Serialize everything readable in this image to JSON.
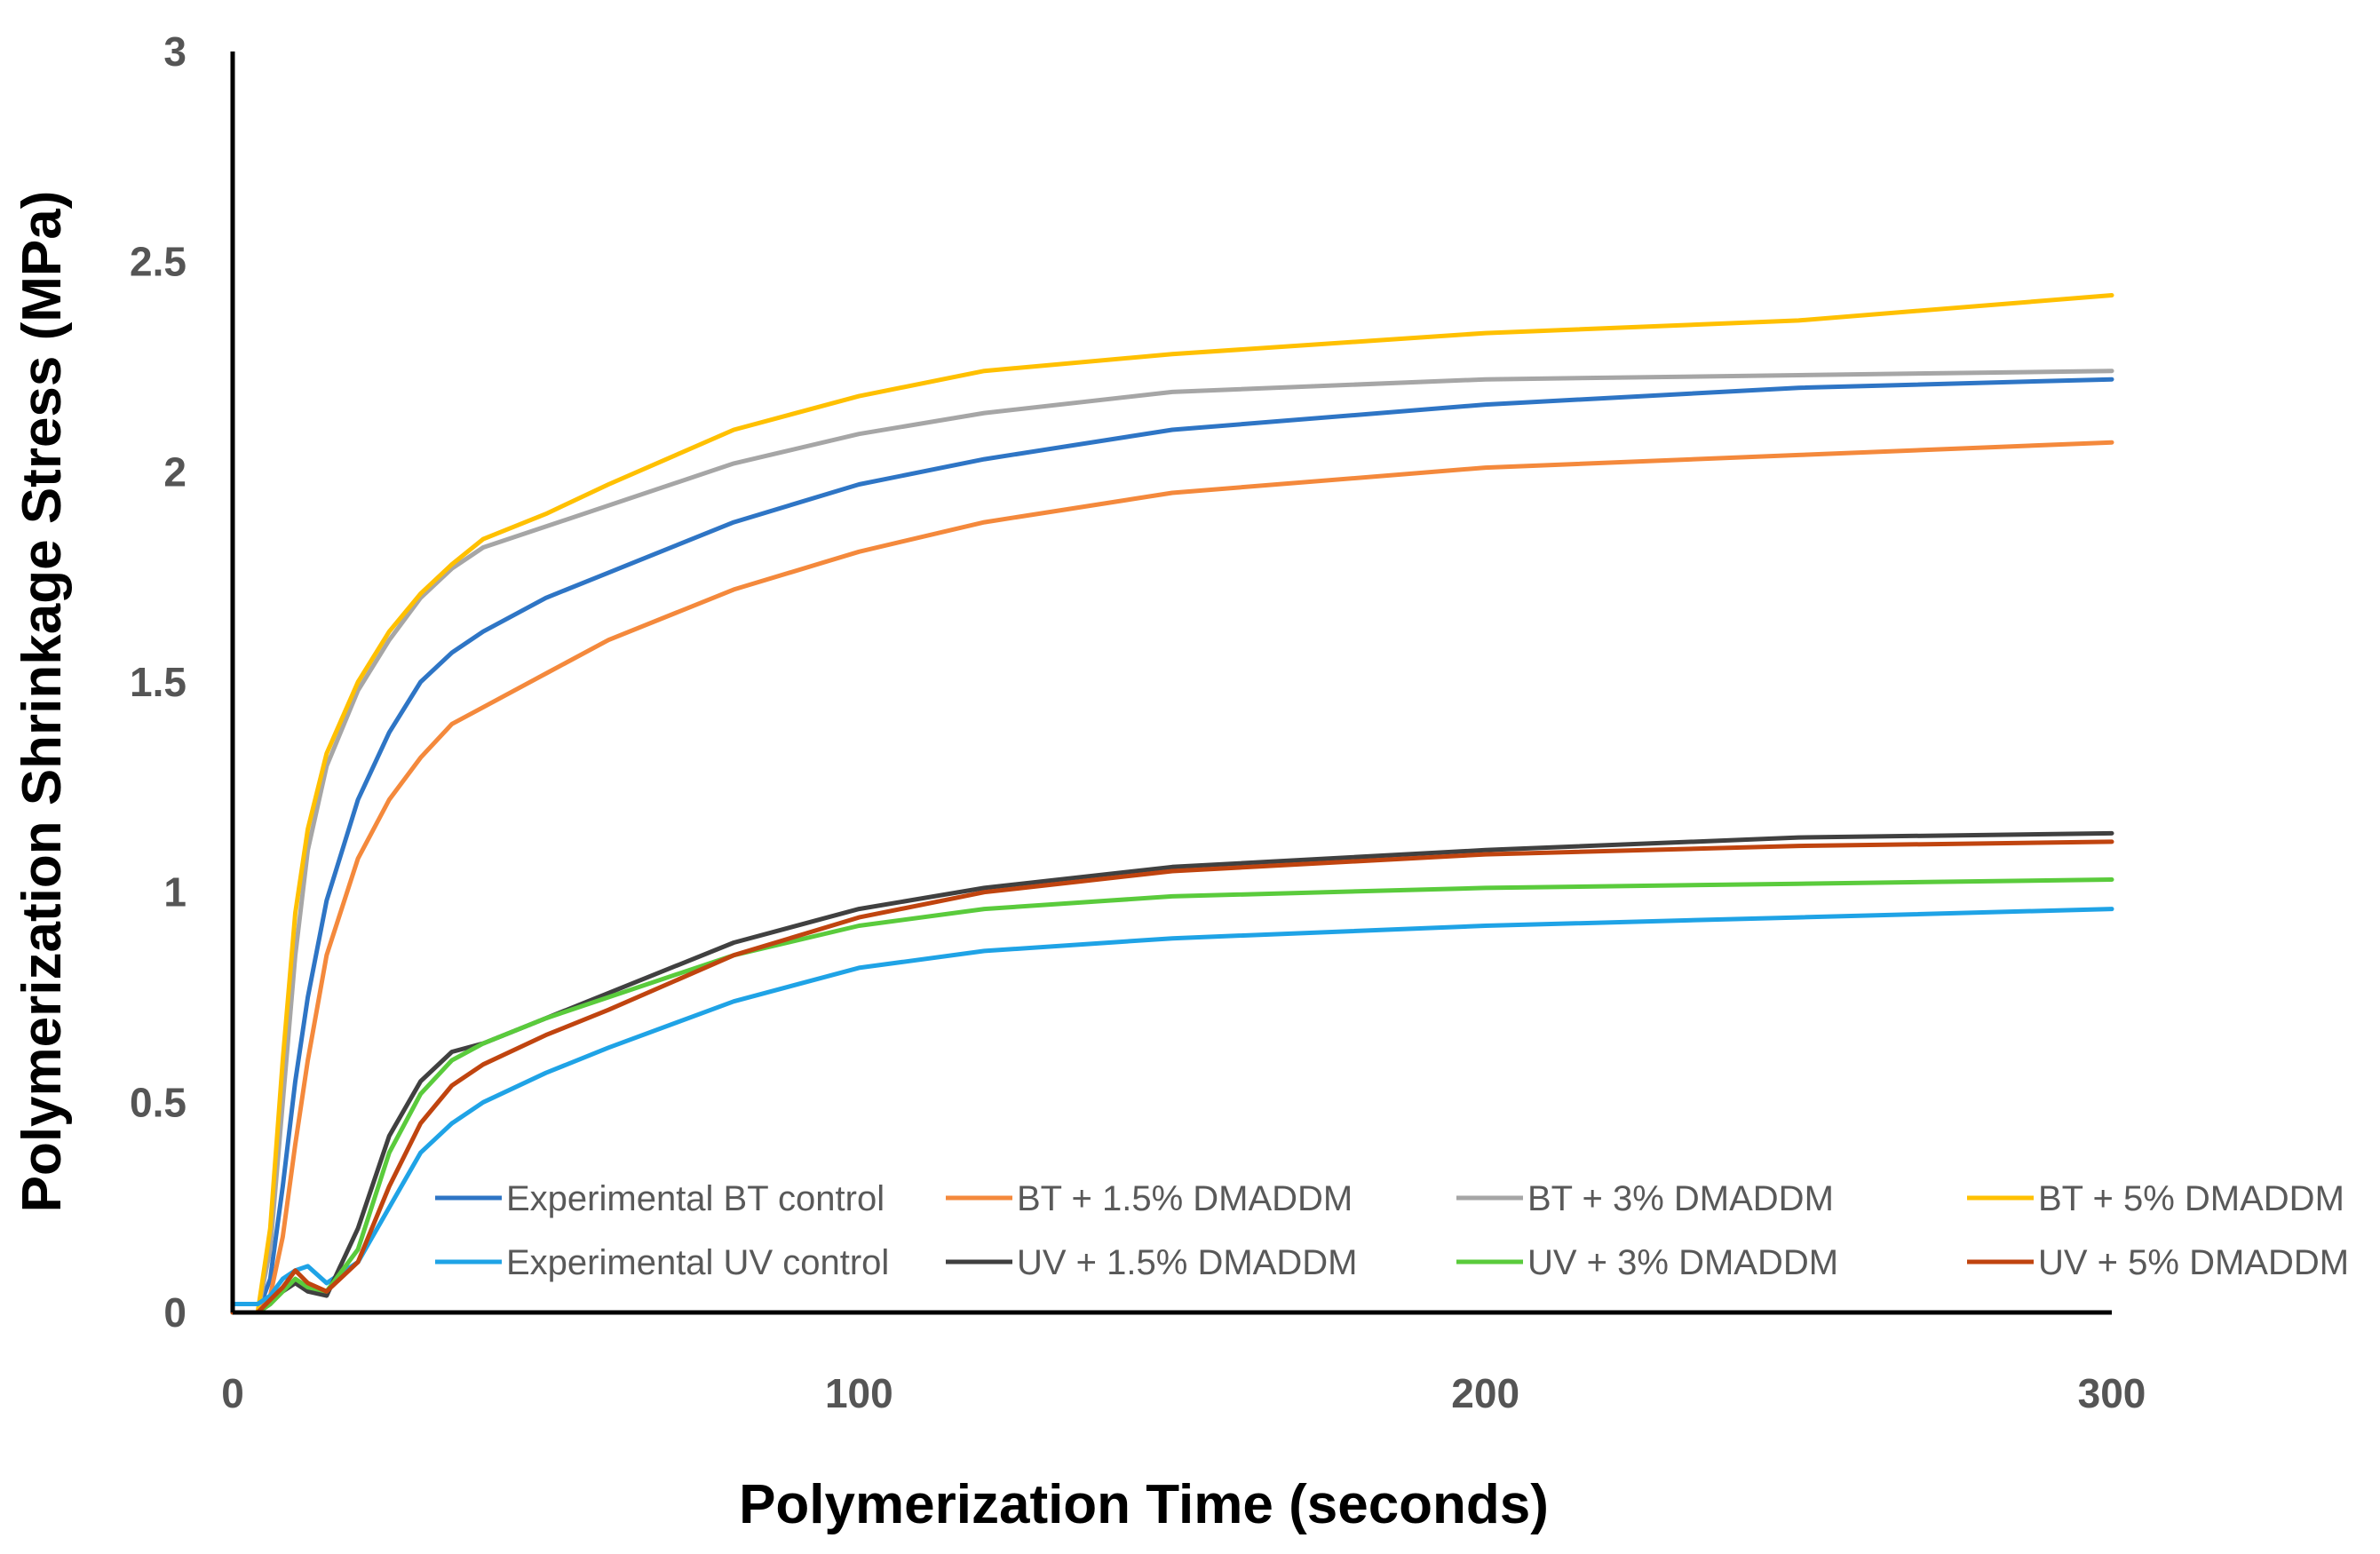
{
  "chart_data": {
    "type": "line",
    "title": "",
    "xlabel": "Polymerization Time (seconds)",
    "ylabel": "Polymerization Shrinkage Stress (MPa)",
    "xlim": [
      0,
      300
    ],
    "ylim": [
      0,
      3
    ],
    "xticks": [
      "0",
      "100",
      "200",
      "300"
    ],
    "yticks": [
      "0",
      "0.5",
      "1",
      "1.5",
      "2",
      "2.5",
      "3"
    ],
    "grid": false,
    "legend_position": "bottom-inside",
    "x": [
      0,
      4,
      6,
      8,
      10,
      12,
      15,
      20,
      25,
      30,
      35,
      40,
      50,
      60,
      80,
      100,
      120,
      150,
      200,
      250,
      300
    ],
    "series": [
      {
        "name": "Experimental BT control",
        "color": "#2E75C5",
        "values": [
          0,
          0,
          0.08,
          0.3,
          0.55,
          0.75,
          0.98,
          1.22,
          1.38,
          1.5,
          1.57,
          1.62,
          1.7,
          1.76,
          1.88,
          1.97,
          2.03,
          2.1,
          2.16,
          2.2,
          2.22
        ]
      },
      {
        "name": "BT + 1.5% DMADDM",
        "color": "#F4893C",
        "values": [
          0,
          0,
          0.04,
          0.18,
          0.4,
          0.6,
          0.85,
          1.08,
          1.22,
          1.32,
          1.4,
          1.44,
          1.52,
          1.6,
          1.72,
          1.81,
          1.88,
          1.95,
          2.01,
          2.04,
          2.07
        ]
      },
      {
        "name": "BT + 3% DMADDM",
        "color": "#A6A6A6",
        "values": [
          0,
          0,
          0.15,
          0.5,
          0.85,
          1.1,
          1.3,
          1.48,
          1.6,
          1.7,
          1.77,
          1.82,
          1.87,
          1.92,
          2.02,
          2.09,
          2.14,
          2.19,
          2.22,
          2.23,
          2.24
        ]
      },
      {
        "name": "BT + 5% DMADDM",
        "color": "#FFC000",
        "values": [
          0,
          0,
          0.2,
          0.6,
          0.95,
          1.15,
          1.33,
          1.5,
          1.62,
          1.71,
          1.78,
          1.84,
          1.9,
          1.97,
          2.1,
          2.18,
          2.24,
          2.28,
          2.33,
          2.36,
          2.42
        ]
      },
      {
        "name": "Experimental UV control",
        "color": "#1FA3E6",
        "values": [
          0.02,
          0.02,
          0.04,
          0.08,
          0.1,
          0.11,
          0.07,
          0.12,
          0.25,
          0.38,
          0.45,
          0.5,
          0.57,
          0.63,
          0.74,
          0.82,
          0.86,
          0.89,
          0.92,
          0.94,
          0.96
        ]
      },
      {
        "name": "UV + 1.5% DMADDM",
        "color": "#404040",
        "values": [
          0,
          0,
          0.02,
          0.05,
          0.07,
          0.05,
          0.04,
          0.2,
          0.42,
          0.55,
          0.62,
          0.64,
          0.7,
          0.76,
          0.88,
          0.96,
          1.01,
          1.06,
          1.1,
          1.13,
          1.14
        ]
      },
      {
        "name": "UV + 3% DMADDM",
        "color": "#5ACB3C",
        "values": [
          0,
          0,
          0.02,
          0.05,
          0.08,
          0.06,
          0.05,
          0.15,
          0.38,
          0.52,
          0.6,
          0.64,
          0.7,
          0.75,
          0.85,
          0.92,
          0.96,
          0.99,
          1.01,
          1.02,
          1.03
        ]
      },
      {
        "name": "UV + 5% DMADDM",
        "color": "#C0440F",
        "values": [
          0,
          0,
          0.03,
          0.06,
          0.1,
          0.07,
          0.05,
          0.12,
          0.3,
          0.45,
          0.54,
          0.59,
          0.66,
          0.72,
          0.85,
          0.94,
          1.0,
          1.05,
          1.09,
          1.11,
          1.12
        ]
      }
    ]
  }
}
